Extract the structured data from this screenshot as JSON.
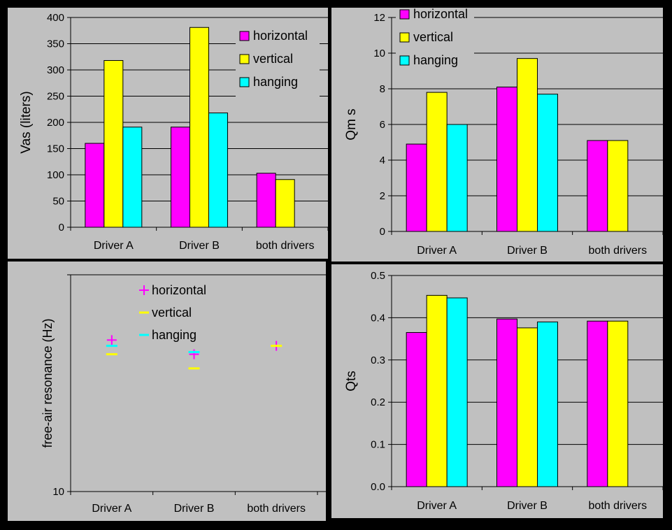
{
  "colors": {
    "horizontal": "#ff00ff",
    "vertical": "#ffff00",
    "hanging": "#00ffff",
    "background": "#c0c0c0",
    "page": "#000000"
  },
  "chart_data": [
    {
      "type": "bar",
      "ylabel": "Vas (liters)",
      "categories": [
        "Driver A",
        "Driver B",
        "both drivers"
      ],
      "series": [
        {
          "name": "horizontal",
          "values": [
            160,
            191,
            103
          ]
        },
        {
          "name": "vertical",
          "values": [
            318,
            381,
            91
          ]
        },
        {
          "name": "hanging",
          "values": [
            191,
            218,
            null
          ]
        }
      ],
      "ylim": [
        0,
        400
      ],
      "yticks": [
        0,
        50,
        100,
        150,
        200,
        250,
        300,
        350,
        400
      ],
      "grid": true,
      "legend": "top-right"
    },
    {
      "type": "bar",
      "ylabel": "Qm s",
      "categories": [
        "Driver A",
        "Driver B",
        "both drivers"
      ],
      "series": [
        {
          "name": "horizontal",
          "values": [
            4.9,
            8.1,
            5.1
          ]
        },
        {
          "name": "vertical",
          "values": [
            7.8,
            9.7,
            5.1
          ]
        },
        {
          "name": "hanging",
          "values": [
            6.0,
            7.7,
            null
          ]
        }
      ],
      "ylim": [
        0,
        12
      ],
      "yticks": [
        0,
        2,
        4,
        6,
        8,
        10,
        12
      ],
      "grid": true,
      "legend": "top-left"
    },
    {
      "type": "scatter",
      "ylabel": "free-air resonance (Hz)",
      "categories": [
        "Driver A",
        "Driver B",
        "both drivers"
      ],
      "series": [
        {
          "name": "horizontal",
          "marker": "+",
          "values": [
            50,
            43,
            47
          ]
        },
        {
          "name": "vertical",
          "marker": "-",
          "values": [
            43,
            37,
            47
          ]
        },
        {
          "name": "hanging",
          "marker": "-",
          "values": [
            47,
            44,
            null
          ]
        }
      ],
      "yscale": "log",
      "ylim": [
        10,
        100
      ],
      "ytick_labels": [
        "10"
      ],
      "grid": true,
      "legend": "top-center"
    },
    {
      "type": "bar",
      "ylabel": "Qts",
      "categories": [
        "Driver A",
        "Driver B",
        "both drivers"
      ],
      "series": [
        {
          "name": "horizontal",
          "values": [
            0.365,
            0.397,
            0.392
          ]
        },
        {
          "name": "vertical",
          "values": [
            0.453,
            0.376,
            0.392
          ]
        },
        {
          "name": "hanging",
          "values": [
            0.447,
            0.39,
            null
          ]
        }
      ],
      "ylim": [
        0,
        0.5
      ],
      "yticks": [
        "0.0",
        "0.1",
        "0.2",
        "0.3",
        "0.4",
        "0.5"
      ],
      "grid": true,
      "legend": "none"
    }
  ]
}
